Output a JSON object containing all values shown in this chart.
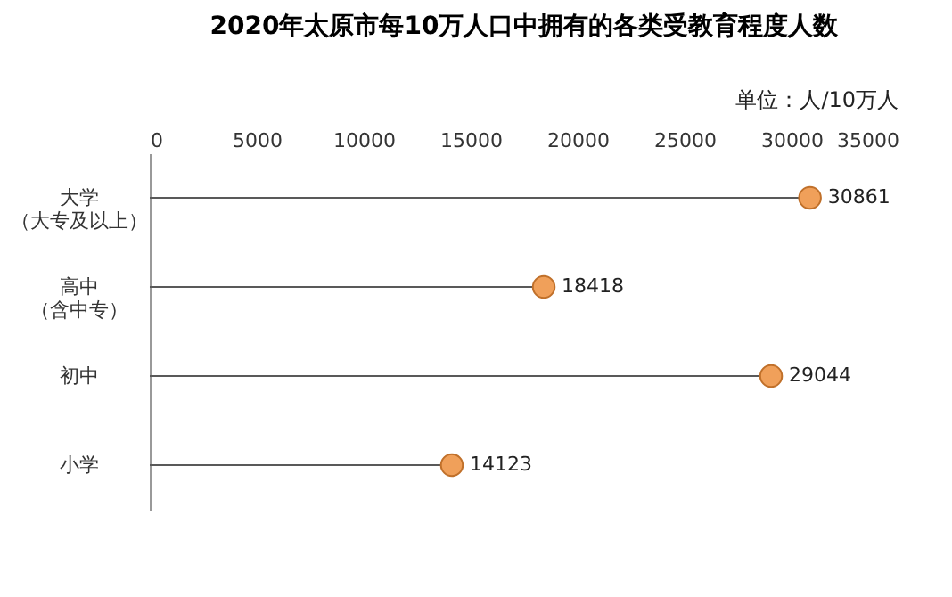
{
  "chart_data": {
    "type": "lollipop",
    "orientation": "horizontal",
    "title": "2020年太原市每10万人口中拥有的各类受教育程度人数",
    "categories": [
      "大学（大专及以上）",
      "高中（含中专）",
      "初中",
      "小学"
    ],
    "values": [
      30861,
      18418,
      29044,
      14123
    ],
    "color": "#f0a05a",
    "xlim": [
      0,
      35000
    ],
    "xticks": [
      0,
      5000,
      10000,
      15000,
      20000,
      25000,
      30000,
      35000
    ],
    "data_labels": true,
    "marker": "circle",
    "annotations": [
      "单位：人/10万人"
    ]
  }
}
